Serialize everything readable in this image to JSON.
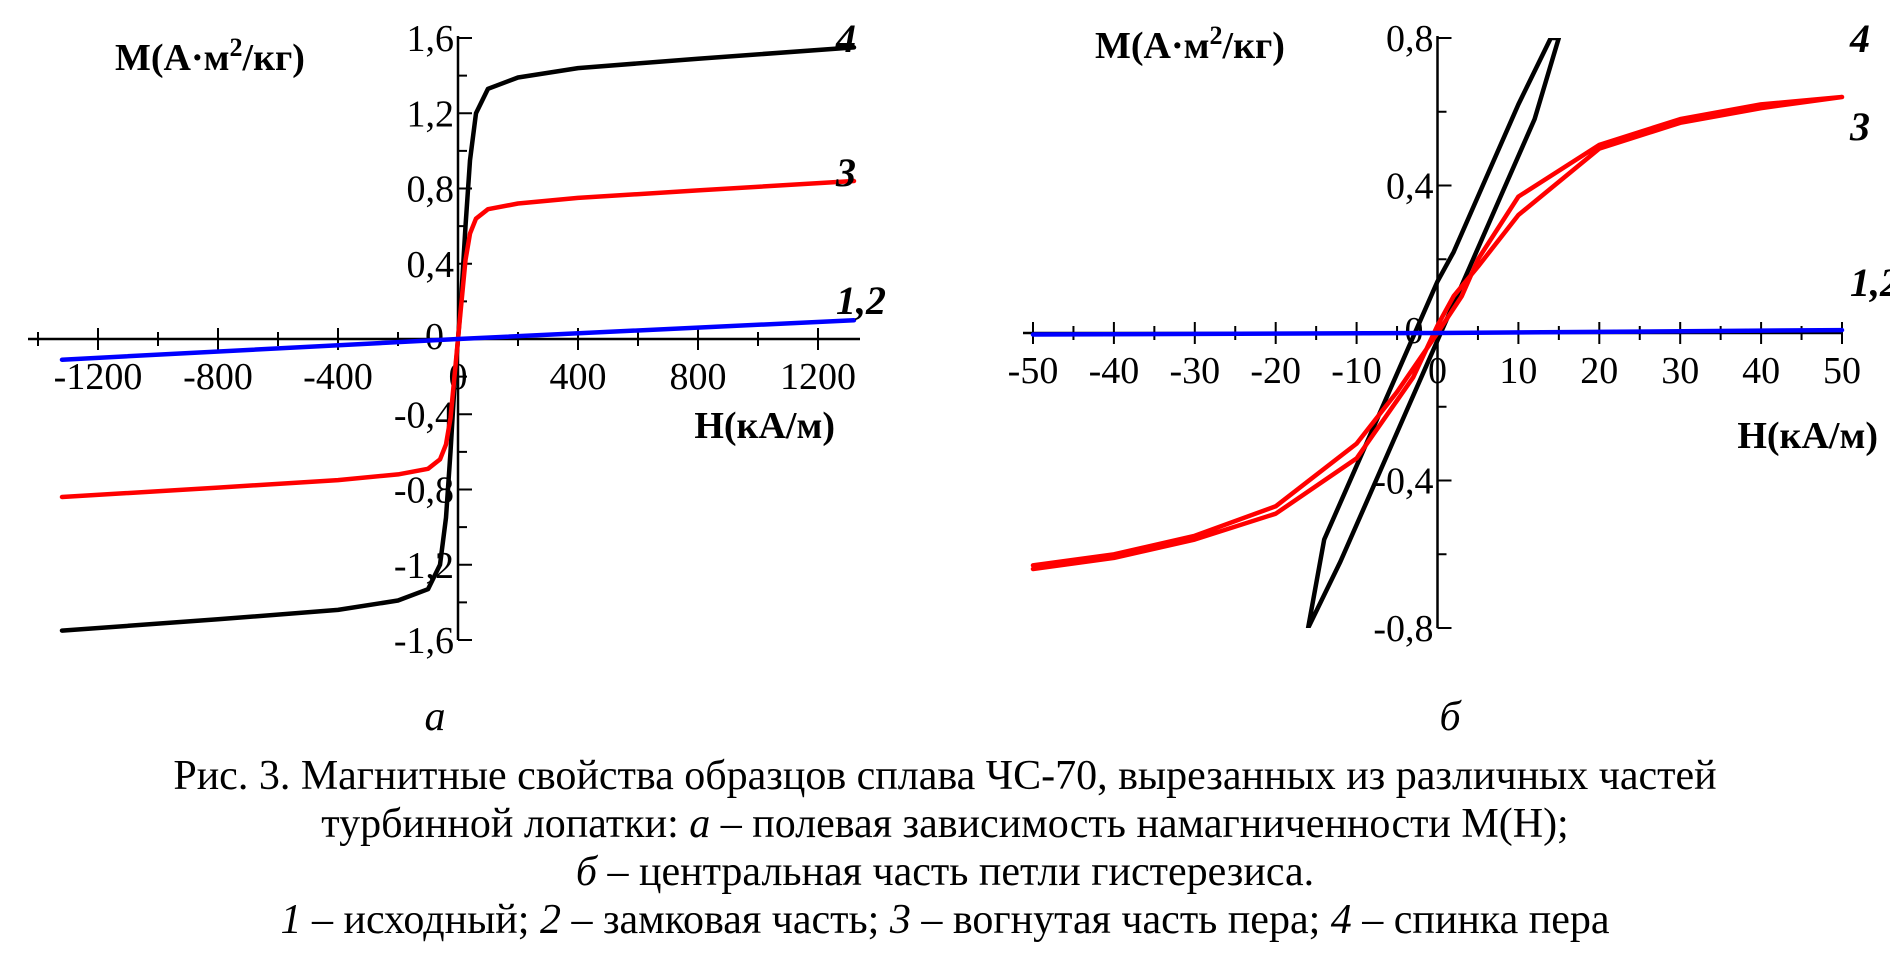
{
  "chart_data": [
    {
      "panel_label": "а",
      "type": "line",
      "ylabel": "M(A·м²/кг)",
      "xlabel": "H(кА/м)",
      "xlim": [
        -1400,
        1340
      ],
      "ylim": [
        -1.6,
        1.6
      ],
      "xticks": [
        -1200,
        -800,
        -400,
        0,
        400,
        800,
        1200
      ],
      "xtick_labels": [
        "-1200",
        "-800",
        "-400",
        "0",
        "400",
        "800",
        "1200"
      ],
      "yticks": [
        -1.6,
        -1.2,
        -0.8,
        -0.4,
        0.4,
        0.8,
        1.2,
        1.6
      ],
      "ytick_labels": [
        "-1,6",
        "-1,2",
        "-0,8",
        "-0,4",
        "0,4",
        "0,8",
        "1,2",
        "1,6"
      ],
      "grid": false,
      "series": [
        {
          "name": "4",
          "color": "#000000",
          "x": [
            -1320,
            -800,
            -400,
            -200,
            -100,
            -60,
            -40,
            -25,
            -10,
            0,
            10,
            25,
            40,
            60,
            100,
            200,
            400,
            800,
            1320
          ],
          "y": [
            -1.55,
            -1.49,
            -1.44,
            -1.39,
            -1.33,
            -1.2,
            -0.95,
            -0.6,
            -0.2,
            0,
            0.2,
            0.6,
            0.95,
            1.2,
            1.33,
            1.39,
            1.44,
            1.49,
            1.55
          ]
        },
        {
          "name": "3",
          "color": "#ff0000",
          "x": [
            -1320,
            -800,
            -400,
            -200,
            -100,
            -60,
            -40,
            -25,
            -10,
            0,
            10,
            25,
            40,
            60,
            100,
            200,
            400,
            800,
            1320
          ],
          "y": [
            -0.84,
            -0.79,
            -0.75,
            -0.72,
            -0.69,
            -0.64,
            -0.56,
            -0.42,
            -0.17,
            0,
            0.17,
            0.42,
            0.56,
            0.64,
            0.69,
            0.72,
            0.75,
            0.79,
            0.84
          ]
        },
        {
          "name": "1,2",
          "color": "#0000ff",
          "x": [
            -1320,
            0,
            1320
          ],
          "y": [
            -0.11,
            0,
            0.1
          ]
        }
      ]
    },
    {
      "panel_label": "б",
      "type": "line",
      "ylabel": "M(A·м²/кг)",
      "xlabel": "H(кА/м)",
      "xlim": [
        -50,
        50
      ],
      "ylim": [
        -0.8,
        0.8
      ],
      "xticks": [
        -50,
        -40,
        -30,
        -20,
        -10,
        0,
        10,
        20,
        30,
        40,
        50
      ],
      "xtick_labels": [
        "-50",
        "-40",
        "-30",
        "-20",
        "-10",
        "0",
        "10",
        "20",
        "30",
        "40",
        "50"
      ],
      "yticks": [
        -0.8,
        -0.4,
        0.4,
        0.8
      ],
      "ytick_labels": [
        "-0,8",
        "-0,4",
        "0,4",
        "0,8"
      ],
      "grid": false,
      "series": [
        {
          "name": "4",
          "color": "#000000",
          "x": [
            -16,
            -12,
            -8,
            -4,
            0,
            4,
            8,
            12,
            15,
            14,
            10,
            6,
            2,
            0,
            -2,
            -6,
            -10,
            -14,
            -16
          ],
          "y": [
            -0.8,
            -0.62,
            -0.42,
            -0.22,
            -0.02,
            0.18,
            0.38,
            0.58,
            0.8,
            0.8,
            0.62,
            0.42,
            0.22,
            0.14,
            0.04,
            -0.16,
            -0.36,
            -0.56,
            -0.8
          ]
        },
        {
          "name": "3",
          "color": "#ff0000",
          "x": [
            -50,
            -40,
            -30,
            -20,
            -10,
            -5,
            0,
            3,
            5,
            10,
            20,
            30,
            40,
            50,
            40,
            30,
            20,
            10,
            5,
            2,
            0,
            -3,
            -10,
            -20,
            -30,
            -40,
            -50
          ],
          "y": [
            -0.63,
            -0.6,
            -0.55,
            -0.47,
            -0.3,
            -0.16,
            0.0,
            0.1,
            0.2,
            0.37,
            0.51,
            0.58,
            0.62,
            0.64,
            0.61,
            0.57,
            0.5,
            0.32,
            0.18,
            0.1,
            0.02,
            -0.12,
            -0.34,
            -0.49,
            -0.56,
            -0.61,
            -0.64
          ]
        },
        {
          "name": "1,2",
          "color": "#0000ff",
          "x": [
            -50,
            0,
            50
          ],
          "y": [
            -0.004,
            0,
            0.008
          ]
        }
      ]
    }
  ],
  "caption": {
    "line1": "Рис. 3. Магнитные свойства образцов сплава ЧС-70, вырезанных из различных частей",
    "line2a": "турбинной лопатки: ",
    "line2b": "а",
    "line2c": " – полевая зависимость намагниченности M(H);",
    "line3a": "б",
    "line3b": " – центральная часть петли гистерезиса.",
    "line4_1": "1",
    "line4_2": " – исходный; ",
    "line4_3": "2",
    "line4_4": " – замковая часть; ",
    "line4_5": "3",
    "line4_6": " – вогнутая часть пера; ",
    "line4_7": "4",
    "line4_8": " – спинка пера"
  }
}
